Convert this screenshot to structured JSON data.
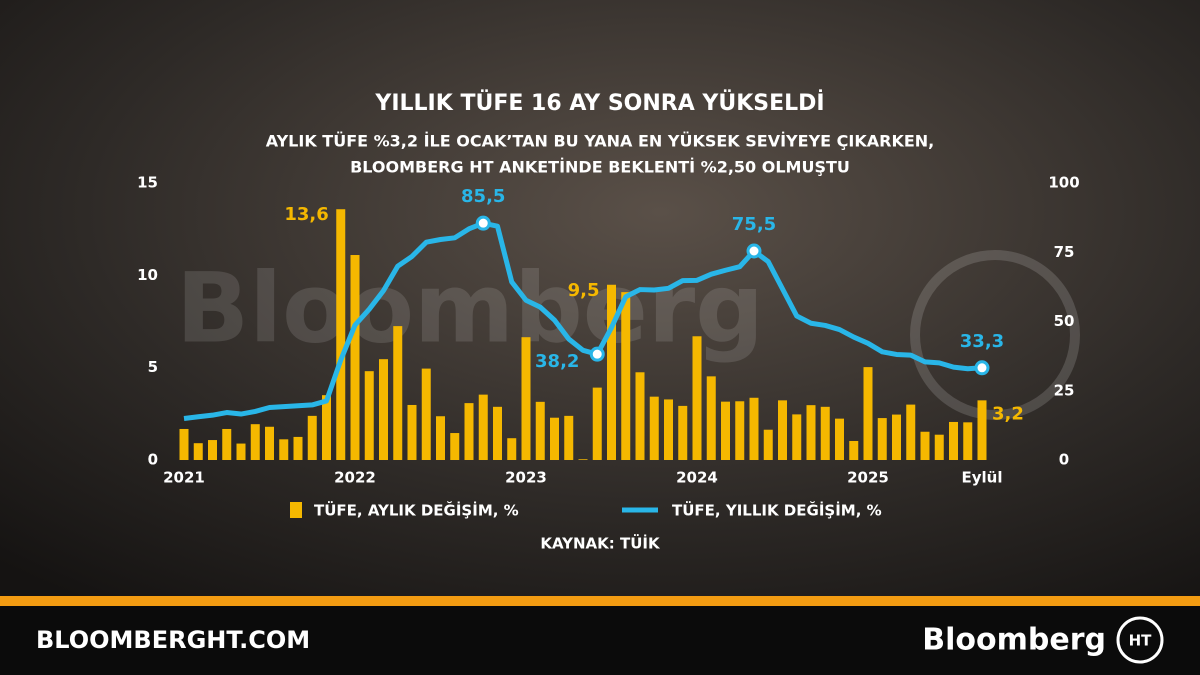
{
  "chart_data": {
    "type": "combo",
    "title": "YILLIK TÜFE 16 AY SONRA YÜKSELDİ",
    "subtitle": [
      "AYLIK TÜFE %3,2 İLE OCAK’TAN BU YANA EN YÜKSEK SEVİYEYE ÇIKARKEN,",
      "BLOOMBERG HT ANKETİNDE BEKLENTİ %2,50 OLMUŞTU"
    ],
    "source": "KAYNAK: TÜİK",
    "categories": [
      "2021",
      null,
      null,
      null,
      null,
      null,
      null,
      null,
      null,
      null,
      null,
      null,
      "2022",
      null,
      null,
      null,
      null,
      null,
      null,
      null,
      null,
      null,
      null,
      null,
      "2023",
      null,
      null,
      null,
      null,
      null,
      null,
      null,
      null,
      null,
      null,
      null,
      "2024",
      null,
      null,
      null,
      null,
      null,
      null,
      null,
      null,
      null,
      null,
      null,
      "2025",
      null,
      null,
      null,
      null,
      null,
      null,
      null,
      "Eylül"
    ],
    "ylim": [
      0,
      15
    ],
    "yticks": [
      0,
      5,
      10,
      15
    ],
    "y2lim": [
      0,
      100
    ],
    "y2ticks": [
      0,
      25,
      50,
      75,
      100
    ],
    "series": [
      {
        "name": "TÜFE, AYLIK DEĞİŞİM, %",
        "type": "bar",
        "color": "#f5b800",
        "values": [
          1.68,
          0.91,
          1.08,
          1.68,
          0.89,
          1.94,
          1.8,
          1.12,
          1.25,
          2.39,
          3.51,
          13.58,
          11.1,
          4.81,
          5.46,
          7.25,
          2.98,
          4.95,
          2.37,
          1.46,
          3.08,
          3.54,
          2.88,
          1.18,
          6.65,
          3.15,
          2.29,
          2.39,
          0.04,
          3.92,
          9.49,
          9.09,
          4.75,
          3.43,
          3.28,
          2.93,
          6.7,
          4.53,
          3.16,
          3.18,
          3.37,
          1.64,
          3.23,
          2.47,
          2.97,
          2.88,
          2.24,
          1.03,
          5.03,
          2.27,
          2.46,
          3.0,
          1.53,
          1.37,
          2.06,
          2.04,
          3.23
        ],
        "value_labels": [
          null,
          null,
          null,
          null,
          null,
          null,
          null,
          null,
          null,
          null,
          null,
          "13,6",
          null,
          null,
          null,
          null,
          null,
          null,
          null,
          null,
          null,
          null,
          null,
          null,
          null,
          null,
          null,
          null,
          null,
          null,
          "9,5",
          null,
          null,
          null,
          null,
          null,
          null,
          null,
          null,
          null,
          null,
          null,
          null,
          null,
          null,
          null,
          null,
          null,
          null,
          null,
          null,
          null,
          null,
          null,
          null,
          null,
          "3,2"
        ]
      },
      {
        "name": "TÜFE, YILLIK DEĞİŞİM, %",
        "type": "line",
        "axis": "y2",
        "color": "#29b6e8",
        "values": [
          14.97,
          15.61,
          16.19,
          17.14,
          16.59,
          17.53,
          18.95,
          19.25,
          19.58,
          19.89,
          21.31,
          36.08,
          48.69,
          54.44,
          61.14,
          69.97,
          73.5,
          78.62,
          79.6,
          80.21,
          83.45,
          85.51,
          84.39,
          64.27,
          57.68,
          55.18,
          50.51,
          43.68,
          39.59,
          38.21,
          47.83,
          58.94,
          61.53,
          61.36,
          61.98,
          64.77,
          64.86,
          67.07,
          68.5,
          69.8,
          75.45,
          71.6,
          61.78,
          51.97,
          49.38,
          48.58,
          47.09,
          44.38,
          42.12,
          39.05,
          38.1,
          37.86,
          35.41,
          35.05,
          33.52,
          32.95,
          33.29
        ],
        "value_labels": [
          null,
          null,
          null,
          null,
          null,
          null,
          null,
          null,
          null,
          null,
          null,
          null,
          null,
          null,
          null,
          null,
          null,
          null,
          null,
          null,
          null,
          "85,5",
          null,
          null,
          null,
          null,
          null,
          null,
          null,
          "38,2",
          null,
          null,
          null,
          null,
          null,
          null,
          null,
          null,
          null,
          null,
          "75,5",
          null,
          null,
          null,
          null,
          null,
          null,
          null,
          null,
          null,
          null,
          null,
          null,
          null,
          null,
          null,
          "33,3"
        ]
      }
    ]
  },
  "watermark": "Bloomberg",
  "footer": {
    "site": "BLOOMBERGHT.COM",
    "brand": "Bloomberg",
    "logo": "HT"
  }
}
